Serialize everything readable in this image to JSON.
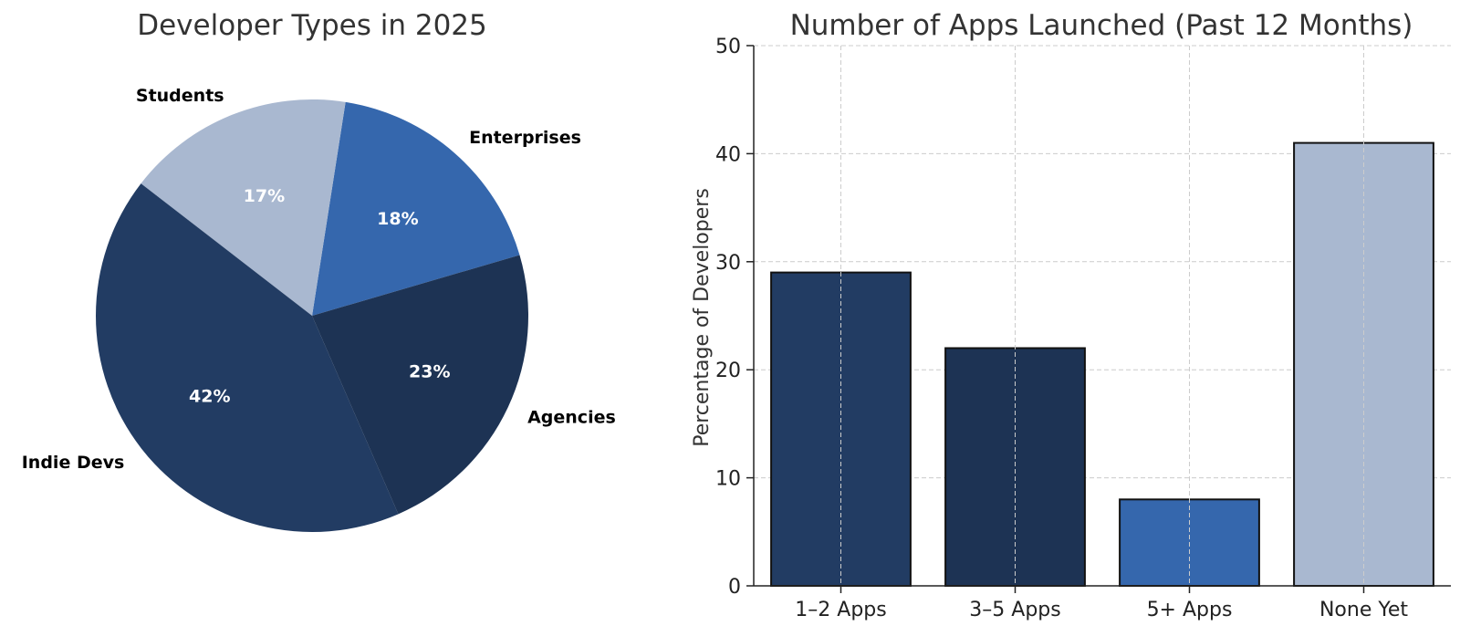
{
  "chart_data": [
    {
      "type": "pie",
      "title": "Developer Types in 2025",
      "labels": [
        "Enterprises",
        "Students",
        "Indie Devs",
        "Agencies"
      ],
      "values": [
        18,
        17,
        42,
        23
      ],
      "value_labels": [
        "18%",
        "17%",
        "42%",
        "23%"
      ],
      "colors": [
        "#3567ad",
        "#a9b8d0",
        "#223c63",
        "#1d3354"
      ],
      "start_angle_deg": 16.3,
      "direction": "counterclockwise",
      "legend": "none"
    },
    {
      "type": "bar",
      "title": "Number of Apps Launched (Past 12 Months)",
      "categories": [
        "1–2 Apps",
        "3–5 Apps",
        "5+ Apps",
        "None Yet"
      ],
      "values": [
        29,
        22,
        8,
        41
      ],
      "colors": [
        "#223c63",
        "#1d3354",
        "#3567ad",
        "#a9b8d0"
      ],
      "xlabel": "",
      "ylabel": "Percentage of Developers",
      "ylim": [
        0,
        50
      ],
      "yticks": [
        "0",
        "10",
        "20",
        "30",
        "40",
        "50"
      ],
      "grid": true,
      "legend": "none"
    }
  ]
}
